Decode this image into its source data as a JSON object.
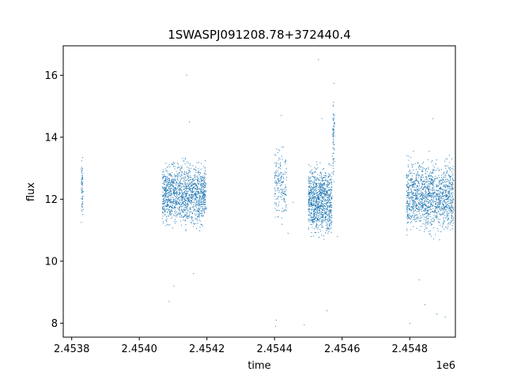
{
  "chart_data": {
    "type": "scatter",
    "title": "1SWASPJ091208.78+372440.4",
    "xlabel": "time",
    "ylabel": "flux",
    "x_offset_label": "1e6",
    "xlim": [
      2453775,
      2454935
    ],
    "ylim": [
      7.55,
      16.95
    ],
    "x_ticks": [
      2453800,
      2454000,
      2454200,
      2454400,
      2454600,
      2454800
    ],
    "x_tick_labels": [
      "2.4538",
      "2.4540",
      "2.4542",
      "2.4544",
      "2.4546",
      "2.4548"
    ],
    "y_ticks": [
      8,
      10,
      12,
      14,
      16
    ],
    "y_tick_labels": [
      "8",
      "10",
      "12",
      "14",
      "16"
    ],
    "grid": false,
    "marker_color": "#1f77b4",
    "clusters": [
      {
        "x_start": 2453828,
        "x_end": 2453834,
        "y_min": 10.9,
        "y_max": 13.7,
        "count": 60
      },
      {
        "x_start": 2454068,
        "x_end": 2454198,
        "y_min": 10.8,
        "y_max": 13.5,
        "count": 1400
      },
      {
        "x_start": 2454400,
        "x_end": 2454436,
        "y_min": 11.0,
        "y_max": 14.0,
        "count": 180
      },
      {
        "x_start": 2454500,
        "x_end": 2454570,
        "y_min": 10.5,
        "y_max": 13.4,
        "count": 1000
      },
      {
        "x_start": 2454572,
        "x_end": 2454578,
        "y_min": 12.0,
        "y_max": 16.0,
        "count": 70
      },
      {
        "x_start": 2454790,
        "x_end": 2454930,
        "y_min": 10.6,
        "y_max": 13.6,
        "count": 1400
      }
    ],
    "outliers": [
      [
        2454088,
        8.7
      ],
      [
        2454102,
        9.2
      ],
      [
        2454140,
        16.0
      ],
      [
        2454148,
        14.5
      ],
      [
        2454160,
        9.6
      ],
      [
        2454403,
        7.9
      ],
      [
        2454405,
        8.1
      ],
      [
        2454420,
        14.7
      ],
      [
        2454440,
        10.9
      ],
      [
        2454488,
        7.95
      ],
      [
        2454530,
        16.5
      ],
      [
        2454540,
        14.6
      ],
      [
        2454555,
        8.4
      ],
      [
        2454586,
        10.8
      ],
      [
        2454800,
        8.0
      ],
      [
        2454828,
        9.4
      ],
      [
        2454845,
        8.6
      ],
      [
        2454868,
        14.6
      ],
      [
        2454880,
        8.3
      ],
      [
        2454905,
        8.2
      ],
      [
        2454455,
        11.9
      ],
      [
        2454120,
        11.5
      ]
    ]
  }
}
